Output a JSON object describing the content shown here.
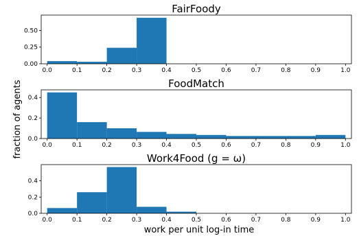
{
  "figure": {
    "xlabel": "work per unit log-in time",
    "ylabel": "fraction of agents"
  },
  "chart_data": [
    {
      "type": "bar",
      "title": "FairFoody",
      "bin_edges": [
        0.0,
        0.1,
        0.2,
        0.3,
        0.4,
        0.5,
        0.6,
        0.7,
        0.8,
        0.9,
        1.0
      ],
      "values": [
        0.04,
        0.03,
        0.24,
        0.69,
        0,
        0,
        0,
        0,
        0,
        0
      ],
      "xlim": [
        -0.02,
        1.02
      ],
      "ylim": [
        0,
        0.73
      ],
      "xticks": [
        "0.0",
        "0.1",
        "0.2",
        "0.3",
        "0.4",
        "0.5",
        "0.6",
        "0.7",
        "0.8",
        "0.9",
        "1.0"
      ],
      "yticks": [
        0.0,
        0.25,
        0.5
      ],
      "ytick_labels": [
        "0.00",
        "0.25",
        "0.50"
      ],
      "color": "#1f77b4",
      "grid": false
    },
    {
      "type": "bar",
      "title": "FoodMatch",
      "bin_edges": [
        0.0,
        0.1,
        0.2,
        0.3,
        0.4,
        0.5,
        0.6,
        0.7,
        0.8,
        0.9,
        1.0
      ],
      "values": [
        0.45,
        0.16,
        0.1,
        0.065,
        0.045,
        0.035,
        0.025,
        0.025,
        0.025,
        0.035
      ],
      "xlim": [
        -0.02,
        1.02
      ],
      "ylim": [
        0,
        0.475
      ],
      "xticks": [
        "0.0",
        "0.1",
        "0.2",
        "0.3",
        "0.4",
        "0.5",
        "0.6",
        "0.7",
        "0.8",
        "0.9",
        "1.0"
      ],
      "yticks": [
        0.0,
        0.2,
        0.4
      ],
      "ytick_labels": [
        "0.0",
        "0.2",
        "0.4"
      ],
      "color": "#1f77b4",
      "grid": false
    },
    {
      "type": "bar",
      "title": "Work4Food (g = ω)",
      "bin_edges": [
        0.0,
        0.1,
        0.2,
        0.3,
        0.4,
        0.5,
        0.6,
        0.7,
        0.8,
        0.9,
        1.0
      ],
      "values": [
        0.065,
        0.26,
        0.57,
        0.08,
        0.02,
        0,
        0,
        0,
        0,
        0
      ],
      "xlim": [
        -0.02,
        1.02
      ],
      "ylim": [
        0,
        0.6
      ],
      "xticks": [
        "0.0",
        "0.1",
        "0.2",
        "0.3",
        "0.4",
        "0.5",
        "0.6",
        "0.7",
        "0.8",
        "0.9",
        "1.0"
      ],
      "yticks": [
        0.0,
        0.2,
        0.4
      ],
      "ytick_labels": [
        "0.0",
        "0.2",
        "0.4"
      ],
      "color": "#1f77b4",
      "grid": false
    }
  ]
}
